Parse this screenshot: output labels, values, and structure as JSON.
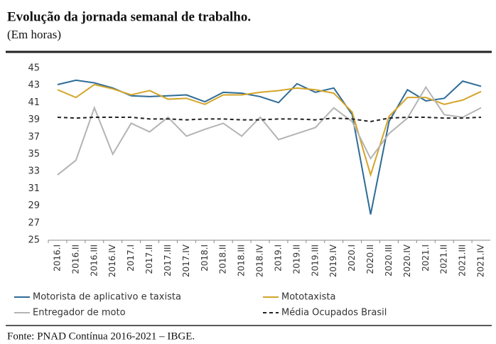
{
  "chart_data": {
    "type": "line",
    "title": "Evolução da jornada semanal de trabalho.",
    "subtitle": "(Em horas)",
    "source": "Fonte: PNAD Contínua 2016-2021 – IBGE.",
    "categories": [
      "2016.I",
      "2016.II",
      "2016.III",
      "2016.IV",
      "2017.I",
      "2017.II",
      "2017.III",
      "2017.IV",
      "2018.I",
      "2018.II",
      "2018.III",
      "2018.IV",
      "2019.I",
      "2019.II",
      "2019.III",
      "2019.IV",
      "2020.I",
      "2020.II",
      "2020.III",
      "2020.IV",
      "2021.I",
      "2021.II",
      "2021.III",
      "2021.IV"
    ],
    "series": [
      {
        "name": "Motorista de aplicativo e taxista",
        "color": "#2e6b96",
        "dash": false,
        "values": [
          43.1,
          43.6,
          43.3,
          42.7,
          41.8,
          41.7,
          41.8,
          41.9,
          41.1,
          42.2,
          42.1,
          41.7,
          41.0,
          43.2,
          42.2,
          42.7,
          39.6,
          28.0,
          38.8,
          42.5,
          41.2,
          41.5,
          43.5,
          42.9
        ]
      },
      {
        "name": "Mototaxista",
        "color": "#d4a52a",
        "dash": false,
        "values": [
          42.5,
          41.6,
          43.1,
          42.6,
          41.9,
          42.4,
          41.4,
          41.5,
          40.8,
          41.9,
          41.9,
          42.2,
          42.4,
          42.7,
          42.5,
          42.1,
          39.9,
          32.6,
          39.4,
          41.6,
          41.6,
          40.8,
          41.3,
          42.3
        ]
      },
      {
        "name": "Entregador de moto",
        "color": "#b4b4b4",
        "dash": false,
        "values": [
          32.6,
          34.3,
          40.4,
          35.0,
          38.6,
          37.6,
          39.3,
          37.1,
          37.9,
          38.6,
          37.1,
          39.3,
          36.7,
          37.4,
          38.1,
          40.4,
          38.8,
          34.5,
          37.4,
          39.2,
          42.8,
          39.6,
          39.3,
          40.4
        ]
      },
      {
        "name": "Média Ocupados Brasil",
        "color": "#222222",
        "dash": true,
        "values": [
          39.3,
          39.2,
          39.3,
          39.3,
          39.3,
          39.1,
          39.1,
          39.0,
          39.1,
          39.1,
          39.0,
          39.0,
          39.1,
          39.1,
          39.0,
          39.2,
          39.1,
          38.8,
          39.2,
          39.3,
          39.3,
          39.2,
          39.2,
          39.3
        ]
      }
    ],
    "ylim": [
      25,
      45
    ],
    "yticks": [
      25,
      27,
      29,
      31,
      33,
      35,
      37,
      39,
      41,
      43,
      45
    ],
    "grid": false
  }
}
